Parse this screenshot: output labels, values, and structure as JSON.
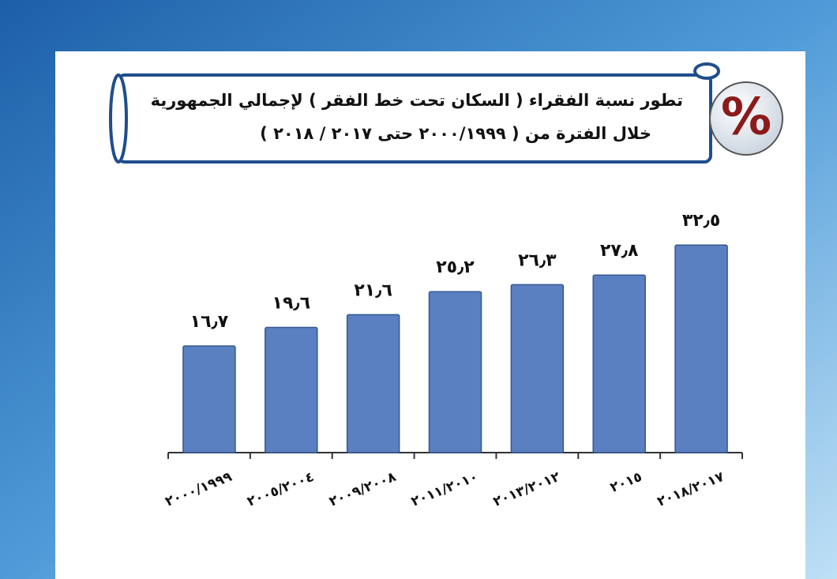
{
  "icon": "%",
  "chart_data": {
    "type": "bar",
    "title": "تطور نسبة الفقراء ( السكان تحت خط الفقر ) لإجمالي الجمهورية",
    "subtitle": "خلال الفترة من ( ٢٠٠٠/١٩٩٩ حتى ٢٠١٧ / ٢٠١٨ )",
    "categories": [
      "٢٠٠٠/١٩٩٩",
      "٢٠٠٥/٢٠٠٤",
      "٢٠٠٩/٢٠٠٨",
      "٢٠١١/٢٠١٠",
      "٢٠١٣/٢٠١٢",
      "٢٠١٥",
      "٢٠١٨/٢٠١٧"
    ],
    "values": [
      16.7,
      19.6,
      21.6,
      25.2,
      26.3,
      27.8,
      32.5
    ],
    "value_labels": [
      "١٦٫٧",
      "١٩٫٦",
      "٢١٫٦",
      "٢٥٫٢",
      "٢٦٫٣",
      "٢٧٫٨",
      "٣٢٫٥"
    ],
    "color": "#5a80c2",
    "ylim": [
      0,
      35
    ]
  }
}
